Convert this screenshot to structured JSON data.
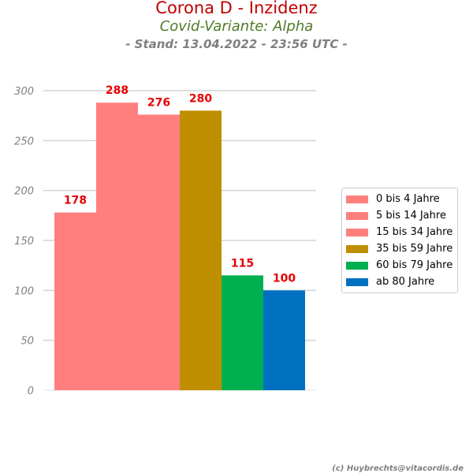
{
  "header": {
    "title": "Corona D - Inzidenz",
    "subtitle": "Covid-Variante: Alpha",
    "stand": "- Stand: 13.04.2022 - 23:56 UTC -"
  },
  "footer": {
    "credit": "(c) Huybrechts@vitacordis.de"
  },
  "chart_data": {
    "type": "bar",
    "title": "Corona D - Inzidenz",
    "subtitle": "Covid-Variante: Alpha",
    "xlabel": "",
    "ylabel": "",
    "ylim": [
      0,
      300
    ],
    "yticks": [
      0,
      50,
      100,
      150,
      200,
      250,
      300
    ],
    "grid": true,
    "legend_position": "right",
    "categories": [
      "0 bis 4 Jahre",
      "5 bis 14 Jahre",
      "15 bis 34 Jahre",
      "35 bis 59 Jahre",
      "60 bis 79 Jahre",
      "ab 80 Jahre"
    ],
    "values": [
      178,
      288,
      276,
      280,
      115,
      100
    ],
    "colors": [
      "#ff7f7f",
      "#ff7f7f",
      "#ff7f7f",
      "#bf8f00",
      "#00b050",
      "#0070c0"
    ]
  }
}
